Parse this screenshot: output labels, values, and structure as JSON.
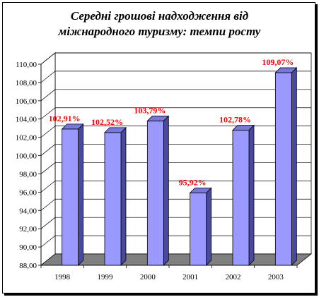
{
  "chart_data": {
    "type": "bar",
    "title_lines": [
      "Середні грошові надходження від",
      "міжнародного туризму: темпи росту"
    ],
    "categories": [
      "1998",
      "1999",
      "2000",
      "2001",
      "2002",
      "2003"
    ],
    "values": [
      102.91,
      102.52,
      103.79,
      95.92,
      102.78,
      109.07
    ],
    "data_labels": [
      "102,91%",
      "102,52%",
      "103,79%",
      "95,92%",
      "102,78%",
      "109,07%"
    ],
    "yticks": [
      "88,00",
      "90,00",
      "92,00",
      "94,00",
      "96,00",
      "98,00",
      "100,00",
      "102,00",
      "104,00",
      "106,00",
      "108,00",
      "110,00"
    ],
    "ylim": [
      88,
      110
    ],
    "xlabel": "",
    "ylabel": "",
    "grid": true,
    "legend": "none",
    "colors": {
      "bar_front": "#9999ff",
      "bar_side": "#4a4a9c",
      "bar_top": "#7777dd",
      "floor": "#808080",
      "label": "#ff0000"
    }
  }
}
